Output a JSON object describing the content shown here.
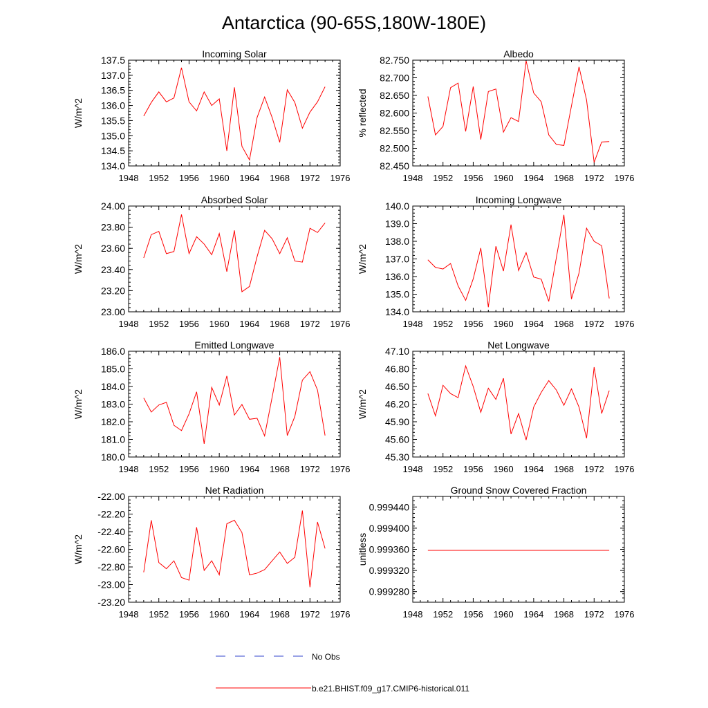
{
  "figure": {
    "title": "Antarctica (90-65S,180W-180E)"
  },
  "legend": {
    "obs_label": "No Obs",
    "model_label": "b.e21.BHIST.f09_g17.CMIP6-historical.011",
    "obs_color": "#3344cc",
    "model_color": "#ff0000"
  },
  "chart_data": [
    {
      "type": "line",
      "title": "Incoming Solar",
      "ylabel": "W/m^2",
      "xlim": [
        1948,
        1976
      ],
      "ylim": [
        134.0,
        137.5
      ],
      "xticks": [
        "1948",
        "1952",
        "1956",
        "1960",
        "1964",
        "1968",
        "1972",
        "1976"
      ],
      "yticks": [
        "134.0",
        "134.5",
        "135.0",
        "135.5",
        "136.0",
        "136.5",
        "137.0",
        "137.5"
      ],
      "x": [
        1950,
        1951,
        1952,
        1953,
        1954,
        1955,
        1956,
        1957,
        1958,
        1959,
        1960,
        1961,
        1962,
        1963,
        1964,
        1965,
        1966,
        1967,
        1968,
        1969,
        1970,
        1971,
        1972,
        1973,
        1974
      ],
      "series": [
        {
          "values": [
            135.65,
            136.1,
            136.45,
            136.12,
            136.25,
            137.25,
            136.12,
            135.82,
            136.45,
            136.0,
            136.22,
            134.5,
            136.6,
            134.65,
            134.2,
            135.6,
            136.28,
            135.6,
            134.78,
            136.52,
            136.1,
            135.25,
            135.78,
            136.12,
            136.62
          ],
          "color": "#ff0000"
        }
      ]
    },
    {
      "type": "line",
      "title": "Albedo",
      "ylabel": "% reflected",
      "xlim": [
        1948,
        1976
      ],
      "ylim": [
        82.45,
        82.75
      ],
      "xticks": [
        "1948",
        "1952",
        "1956",
        "1960",
        "1964",
        "1968",
        "1972",
        "1976"
      ],
      "yticks": [
        "82.450",
        "82.500",
        "82.550",
        "82.600",
        "82.650",
        "82.700",
        "82.750"
      ],
      "x": [
        1950,
        1951,
        1952,
        1953,
        1954,
        1955,
        1956,
        1957,
        1958,
        1959,
        1960,
        1961,
        1962,
        1963,
        1964,
        1965,
        1966,
        1967,
        1968,
        1969,
        1970,
        1971,
        1972,
        1973,
        1974
      ],
      "series": [
        {
          "values": [
            82.647,
            82.538,
            82.562,
            82.672,
            82.685,
            82.548,
            82.675,
            82.525,
            82.661,
            82.668,
            82.546,
            82.587,
            82.576,
            82.748,
            82.657,
            82.632,
            82.538,
            82.511,
            82.508,
            82.62,
            82.731,
            82.637,
            82.46,
            82.518,
            82.519
          ],
          "color": "#ff0000"
        }
      ]
    },
    {
      "type": "line",
      "title": "Absorbed Solar",
      "ylabel": "W/m^2",
      "xlim": [
        1948,
        1976
      ],
      "ylim": [
        23.0,
        24.0
      ],
      "xticks": [
        "1948",
        "1952",
        "1956",
        "1960",
        "1964",
        "1968",
        "1972",
        "1976"
      ],
      "yticks": [
        "23.00",
        "23.20",
        "23.40",
        "23.60",
        "23.80",
        "24.00"
      ],
      "x": [
        1950,
        1951,
        1952,
        1953,
        1954,
        1955,
        1956,
        1957,
        1958,
        1959,
        1960,
        1961,
        1962,
        1963,
        1964,
        1965,
        1966,
        1967,
        1968,
        1969,
        1970,
        1971,
        1972,
        1973,
        1974
      ],
      "series": [
        {
          "values": [
            23.51,
            23.73,
            23.76,
            23.55,
            23.57,
            23.92,
            23.55,
            23.71,
            23.64,
            23.54,
            23.74,
            23.38,
            23.77,
            23.19,
            23.24,
            23.52,
            23.77,
            23.69,
            23.55,
            23.7,
            23.48,
            23.47,
            23.79,
            23.75,
            23.84
          ],
          "color": "#ff0000"
        }
      ]
    },
    {
      "type": "line",
      "title": "Incoming Longwave",
      "ylabel": "W/m^2",
      "xlim": [
        1948,
        1976
      ],
      "ylim": [
        134.0,
        140.0
      ],
      "xticks": [
        "1948",
        "1952",
        "1956",
        "1960",
        "1964",
        "1968",
        "1972",
        "1976"
      ],
      "yticks": [
        "134.0",
        "135.0",
        "136.0",
        "137.0",
        "138.0",
        "139.0",
        "140.0"
      ],
      "x": [
        1950,
        1951,
        1952,
        1953,
        1954,
        1955,
        1956,
        1957,
        1958,
        1959,
        1960,
        1961,
        1962,
        1963,
        1964,
        1965,
        1966,
        1967,
        1968,
        1969,
        1970,
        1971,
        1972,
        1973,
        1974
      ],
      "series": [
        {
          "values": [
            136.95,
            136.52,
            136.43,
            136.74,
            135.47,
            134.65,
            135.87,
            137.62,
            134.26,
            137.72,
            136.31,
            138.95,
            136.34,
            137.36,
            135.97,
            135.85,
            134.59,
            137.06,
            139.5,
            134.72,
            136.2,
            138.74,
            138.0,
            137.75,
            134.76
          ],
          "color": "#ff0000"
        }
      ]
    },
    {
      "type": "line",
      "title": "Emitted Longwave",
      "ylabel": "W/m^2",
      "xlim": [
        1948,
        1976
      ],
      "ylim": [
        180.0,
        186.0
      ],
      "xticks": [
        "1948",
        "1952",
        "1956",
        "1960",
        "1964",
        "1968",
        "1972",
        "1976"
      ],
      "yticks": [
        "180.0",
        "181.0",
        "182.0",
        "183.0",
        "184.0",
        "185.0",
        "186.0"
      ],
      "x": [
        1950,
        1951,
        1952,
        1953,
        1954,
        1955,
        1956,
        1957,
        1958,
        1959,
        1960,
        1961,
        1962,
        1963,
        1964,
        1965,
        1966,
        1967,
        1968,
        1969,
        1970,
        1971,
        1972,
        1973,
        1974
      ],
      "series": [
        {
          "values": [
            183.35,
            182.55,
            182.95,
            183.1,
            181.8,
            181.5,
            182.45,
            183.7,
            180.75,
            183.95,
            182.95,
            184.6,
            182.38,
            182.98,
            182.14,
            182.2,
            181.2,
            183.4,
            185.67,
            181.22,
            182.3,
            184.36,
            184.84,
            183.8,
            181.22
          ],
          "color": "#ff0000"
        }
      ]
    },
    {
      "type": "line",
      "title": "Net Longwave",
      "ylabel": "W/m^2",
      "xlim": [
        1948,
        1976
      ],
      "ylim": [
        45.3,
        47.1
      ],
      "xticks": [
        "1948",
        "1952",
        "1956",
        "1960",
        "1964",
        "1968",
        "1972",
        "1976"
      ],
      "yticks": [
        "45.30",
        "45.60",
        "45.90",
        "46.20",
        "46.50",
        "46.80",
        "47.10"
      ],
      "x": [
        1950,
        1951,
        1952,
        1953,
        1954,
        1955,
        1956,
        1957,
        1958,
        1959,
        1960,
        1961,
        1962,
        1963,
        1964,
        1965,
        1966,
        1967,
        1968,
        1969,
        1970,
        1971,
        1972,
        1973,
        1974
      ],
      "series": [
        {
          "values": [
            46.38,
            46.0,
            46.52,
            46.38,
            46.31,
            46.85,
            46.5,
            46.06,
            46.47,
            46.28,
            46.64,
            45.69,
            46.04,
            45.59,
            46.15,
            46.4,
            46.6,
            46.44,
            46.18,
            46.46,
            46.15,
            45.62,
            46.83,
            46.04,
            46.43
          ],
          "color": "#ff0000"
        }
      ]
    },
    {
      "type": "line",
      "title": "Net Radiation",
      "ylabel": "W/m^2",
      "xlim": [
        1948,
        1976
      ],
      "ylim": [
        -23.2,
        -22.0
      ],
      "xticks": [
        "1948",
        "1952",
        "1956",
        "1960",
        "1964",
        "1968",
        "1972",
        "1976"
      ],
      "yticks": [
        "-23.20",
        "-23.00",
        "-22.80",
        "-22.60",
        "-22.40",
        "-22.20",
        "-22.00"
      ],
      "x": [
        1950,
        1951,
        1952,
        1953,
        1954,
        1955,
        1956,
        1957,
        1958,
        1959,
        1960,
        1961,
        1962,
        1963,
        1964,
        1965,
        1966,
        1967,
        1968,
        1969,
        1970,
        1971,
        1972,
        1973,
        1974
      ],
      "series": [
        {
          "values": [
            -22.86,
            -22.27,
            -22.75,
            -22.82,
            -22.73,
            -22.92,
            -22.95,
            -22.35,
            -22.84,
            -22.73,
            -22.89,
            -22.31,
            -22.27,
            -22.41,
            -22.89,
            -22.87,
            -22.83,
            -22.73,
            -22.63,
            -22.76,
            -22.69,
            -22.16,
            -23.03,
            -22.29,
            -22.59
          ],
          "color": "#ff0000"
        }
      ]
    },
    {
      "type": "line",
      "title": "Ground Snow Covered Fraction",
      "ylabel": "unitless",
      "xlim": [
        1948,
        1976
      ],
      "ylim": [
        0.99926,
        0.99946
      ],
      "xticks": [
        "1948",
        "1952",
        "1956",
        "1960",
        "1964",
        "1968",
        "1972",
        "1976"
      ],
      "ytick_values": [
        0.99928,
        0.99932,
        0.99936,
        0.9994,
        0.99944
      ],
      "yticks": [
        "0.999280",
        "0.999320",
        "0.999360",
        "0.999400",
        "0.999440"
      ],
      "x": [
        1950,
        1951,
        1952,
        1953,
        1954,
        1955,
        1956,
        1957,
        1958,
        1959,
        1960,
        1961,
        1962,
        1963,
        1964,
        1965,
        1966,
        1967,
        1968,
        1969,
        1970,
        1971,
        1972,
        1973,
        1974
      ],
      "series": [
        {
          "values": [
            0.999358,
            0.999358,
            0.999358,
            0.999358,
            0.999358,
            0.999358,
            0.999358,
            0.999358,
            0.999358,
            0.999358,
            0.999358,
            0.999358,
            0.999358,
            0.999358,
            0.999358,
            0.999358,
            0.999358,
            0.999358,
            0.999358,
            0.999358,
            0.999358,
            0.999358,
            0.999358,
            0.999358,
            0.999358
          ],
          "color": "#ff0000"
        }
      ]
    }
  ]
}
